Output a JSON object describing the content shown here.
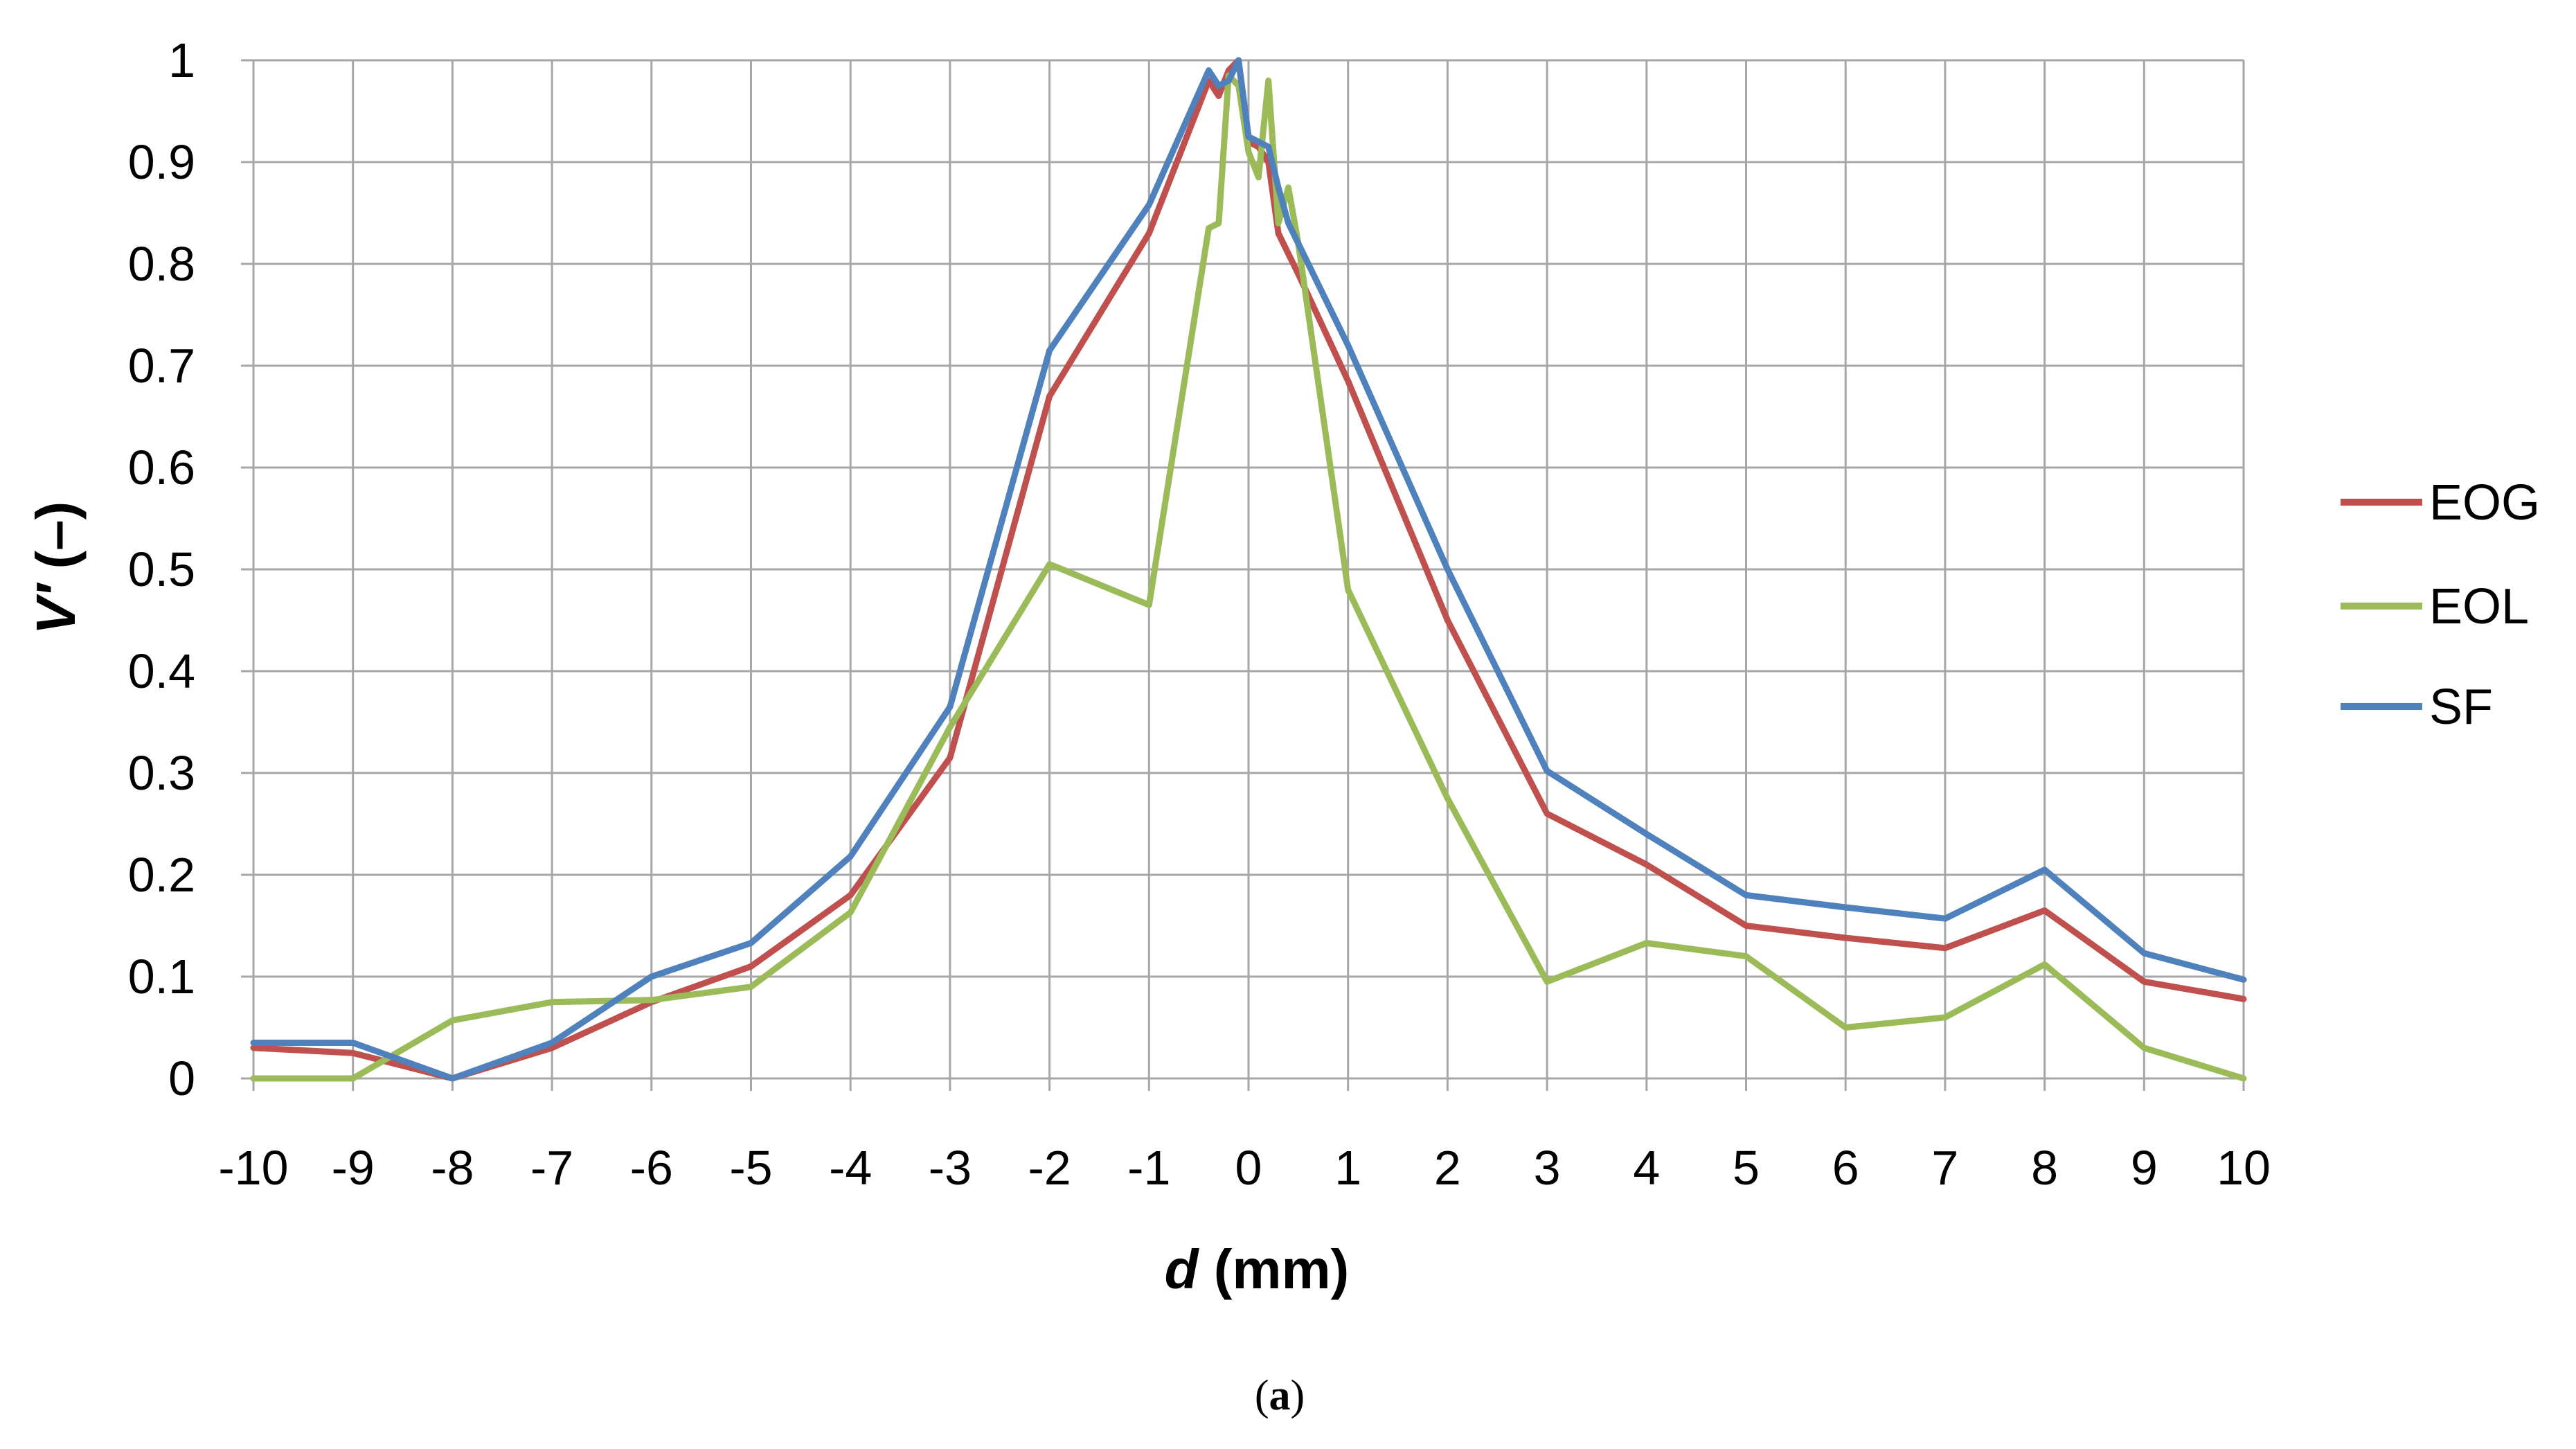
{
  "chart_data": {
    "type": "line",
    "title": "",
    "xlabel_italic": "d",
    "xlabel_rest": " (mm)",
    "ylabel_italic": "V′",
    "ylabel_rest": " (–)",
    "xlim": [
      -10,
      10
    ],
    "ylim": [
      0,
      1
    ],
    "x_ticks": [
      "-10",
      "-9",
      "-8",
      "-7",
      "-6",
      "-5",
      "-4",
      "-3",
      "-2",
      "-1",
      "0",
      "1",
      "2",
      "3",
      "4",
      "5",
      "6",
      "7",
      "8",
      "9",
      "10"
    ],
    "y_ticks": [
      "0",
      "0.1",
      "0.2",
      "0.3",
      "0.4",
      "0.5",
      "0.6",
      "0.7",
      "0.8",
      "0.9",
      "1"
    ],
    "grid": true,
    "legend_position": "right",
    "series": [
      {
        "name": "EOG",
        "color": "#c0504d",
        "x": [
          -10,
          -9,
          -8,
          -7,
          -6,
          -5,
          -4,
          -3,
          -2,
          -1,
          -0.4,
          -0.3,
          -0.2,
          -0.1,
          0,
          0.1,
          0.2,
          0.3,
          0.4,
          0.5,
          1,
          2,
          3,
          4,
          5,
          6,
          7,
          8,
          9,
          10
        ],
        "y": [
          0.03,
          0.025,
          0,
          0.03,
          0.075,
          0.11,
          0.18,
          0.315,
          0.67,
          0.83,
          0.98,
          0.965,
          0.99,
          1.0,
          0.92,
          0.915,
          0.9,
          0.83,
          0.81,
          0.79,
          0.685,
          0.45,
          0.26,
          0.21,
          0.15,
          0.138,
          0.128,
          0.165,
          0.095,
          0.078
        ]
      },
      {
        "name": "EOL",
        "color": "#9bbb59",
        "x": [
          -10,
          -9,
          -8,
          -7,
          -6,
          -5,
          -4,
          -3,
          -2,
          -1,
          -0.4,
          -0.3,
          -0.2,
          -0.1,
          0,
          0.1,
          0.2,
          0.3,
          0.4,
          0.5,
          1,
          2,
          3,
          4,
          5,
          6,
          7,
          8,
          9,
          10
        ],
        "y": [
          0,
          0,
          0.057,
          0.075,
          0.077,
          0.09,
          0.163,
          0.345,
          0.505,
          0.465,
          0.835,
          0.84,
          0.985,
          0.975,
          0.91,
          0.885,
          0.98,
          0.84,
          0.875,
          0.82,
          0.48,
          0.275,
          0.095,
          0.133,
          0.12,
          0.05,
          0.06,
          0.112,
          0.03,
          0
        ]
      },
      {
        "name": "SF",
        "color": "#4f81bd",
        "x": [
          -10,
          -9,
          -8,
          -7,
          -6,
          -5,
          -4,
          -3,
          -2,
          -1,
          -0.4,
          -0.3,
          -0.2,
          -0.1,
          0,
          0.1,
          0.2,
          0.3,
          0.4,
          0.5,
          1,
          2,
          3,
          4,
          5,
          6,
          7,
          8,
          9,
          10
        ],
        "y": [
          0.035,
          0.035,
          0,
          0.035,
          0.1,
          0.133,
          0.218,
          0.365,
          0.715,
          0.858,
          0.99,
          0.975,
          0.98,
          1.0,
          0.925,
          0.92,
          0.915,
          0.875,
          0.84,
          0.82,
          0.72,
          0.5,
          0.302,
          0.24,
          0.18,
          0.168,
          0.157,
          0.205,
          0.123,
          0.097
        ]
      }
    ]
  },
  "caption": {
    "open": "(",
    "letter": "a",
    "close": ")"
  }
}
